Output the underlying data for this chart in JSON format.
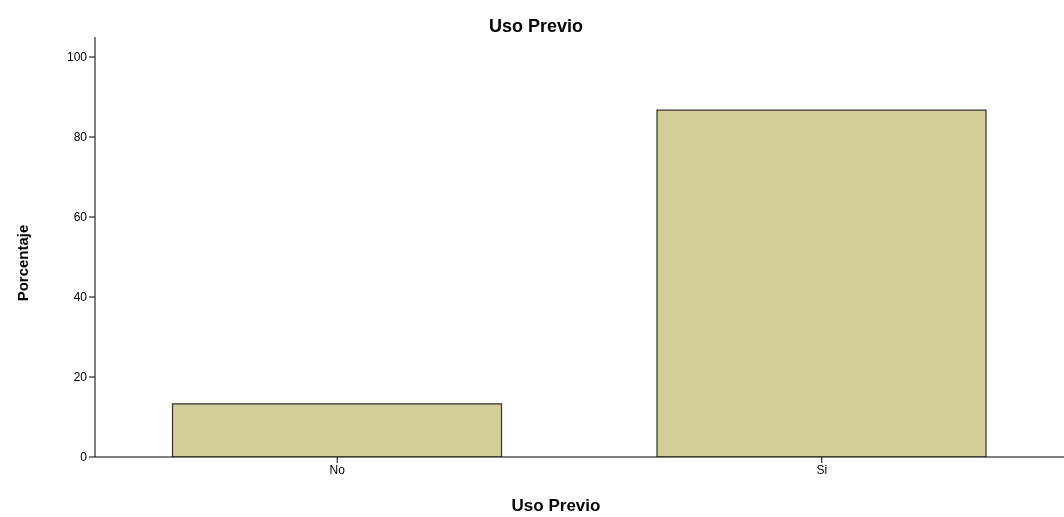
{
  "chart_data": {
    "type": "bar",
    "title": "Uso Previo",
    "xlabel": "Uso Previo",
    "ylabel": "Porcentaje",
    "categories": [
      "No",
      "Si"
    ],
    "values": [
      13.3,
      86.7
    ],
    "color": "#d3cd98",
    "ylim": [
      0,
      105
    ],
    "yticks": [
      0,
      20,
      40,
      60,
      80,
      100
    ],
    "grid": false,
    "legend": false
  }
}
